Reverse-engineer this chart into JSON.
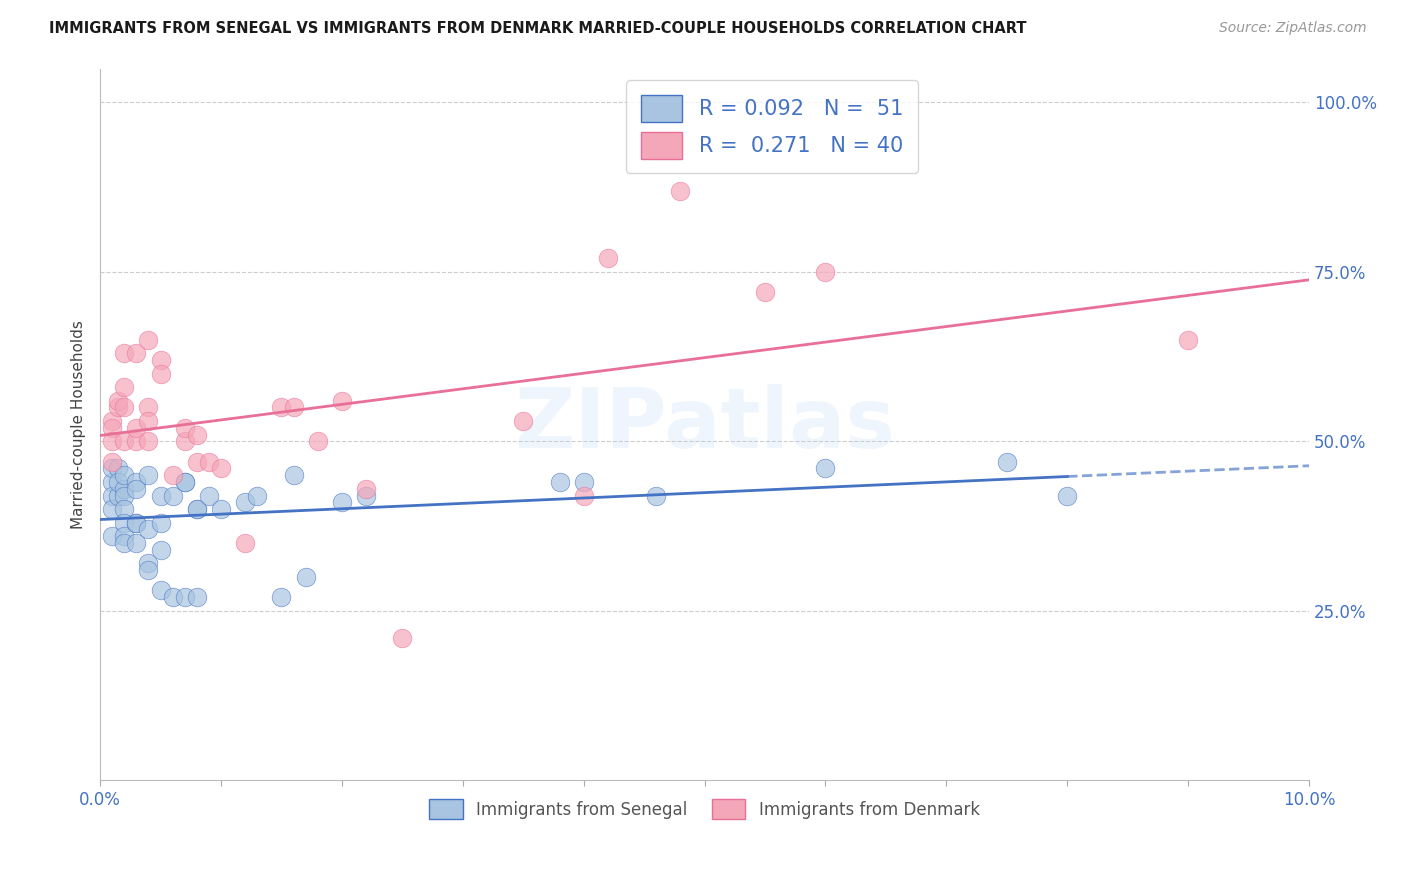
{
  "title": "IMMIGRANTS FROM SENEGAL VS IMMIGRANTS FROM DENMARK MARRIED-COUPLE HOUSEHOLDS CORRELATION CHART",
  "source": "Source: ZipAtlas.com",
  "ylabel": "Married-couple Households",
  "xlim": [
    0.0,
    0.1
  ],
  "ylim": [
    0.0,
    1.05
  ],
  "yticks": [
    0.25,
    0.5,
    0.75,
    1.0
  ],
  "ytick_labels": [
    "25.0%",
    "50.0%",
    "75.0%",
    "100.0%"
  ],
  "xticks": [
    0.0,
    0.01,
    0.02,
    0.03,
    0.04,
    0.05,
    0.06,
    0.07,
    0.08,
    0.09,
    0.1
  ],
  "xtick_labels": [
    "0.0%",
    "",
    "",
    "",
    "",
    "",
    "",
    "",
    "",
    "",
    "10.0%"
  ],
  "color_senegal": "#a8c4e0",
  "color_denmark": "#f4a7b9",
  "line_color_senegal": "#4472C4",
  "line_color_denmark": "#e87098",
  "background_color": "#ffffff",
  "grid_color": "#c8c8c8",
  "watermark": "ZIPatlas",
  "legend1_text": "R = 0.092   N =  51",
  "legend2_text": "R =  0.271   N = 40",
  "legend_label1": "Immigrants from Senegal",
  "legend_label2": "Immigrants from Denmark",
  "senegal_x": [
    0.001,
    0.001,
    0.001,
    0.001,
    0.001,
    0.0015,
    0.0015,
    0.0015,
    0.002,
    0.002,
    0.002,
    0.002,
    0.002,
    0.002,
    0.002,
    0.003,
    0.003,
    0.003,
    0.003,
    0.003,
    0.004,
    0.004,
    0.004,
    0.004,
    0.005,
    0.005,
    0.005,
    0.005,
    0.006,
    0.006,
    0.007,
    0.007,
    0.007,
    0.008,
    0.008,
    0.008,
    0.009,
    0.01,
    0.012,
    0.013,
    0.015,
    0.016,
    0.017,
    0.02,
    0.022,
    0.038,
    0.04,
    0.046,
    0.06,
    0.075,
    0.08
  ],
  "senegal_y": [
    0.44,
    0.46,
    0.42,
    0.4,
    0.36,
    0.46,
    0.42,
    0.44,
    0.43,
    0.45,
    0.42,
    0.4,
    0.38,
    0.36,
    0.35,
    0.38,
    0.38,
    0.35,
    0.44,
    0.43,
    0.37,
    0.32,
    0.31,
    0.45,
    0.34,
    0.42,
    0.38,
    0.28,
    0.27,
    0.42,
    0.44,
    0.27,
    0.44,
    0.4,
    0.4,
    0.27,
    0.42,
    0.4,
    0.41,
    0.42,
    0.27,
    0.45,
    0.3,
    0.41,
    0.42,
    0.44,
    0.44,
    0.42,
    0.46,
    0.47,
    0.42
  ],
  "denmark_x": [
    0.001,
    0.001,
    0.001,
    0.001,
    0.0015,
    0.0015,
    0.002,
    0.002,
    0.002,
    0.002,
    0.003,
    0.003,
    0.003,
    0.004,
    0.004,
    0.004,
    0.004,
    0.005,
    0.005,
    0.006,
    0.007,
    0.007,
    0.008,
    0.008,
    0.009,
    0.01,
    0.012,
    0.015,
    0.016,
    0.018,
    0.02,
    0.022,
    0.025,
    0.035,
    0.04,
    0.042,
    0.048,
    0.055,
    0.06,
    0.09
  ],
  "denmark_y": [
    0.47,
    0.53,
    0.52,
    0.5,
    0.55,
    0.56,
    0.58,
    0.55,
    0.5,
    0.63,
    0.5,
    0.63,
    0.52,
    0.65,
    0.55,
    0.53,
    0.5,
    0.62,
    0.6,
    0.45,
    0.5,
    0.52,
    0.47,
    0.51,
    0.47,
    0.46,
    0.35,
    0.55,
    0.55,
    0.5,
    0.56,
    0.43,
    0.21,
    0.53,
    0.42,
    0.77,
    0.87,
    0.72,
    0.75,
    0.65
  ]
}
